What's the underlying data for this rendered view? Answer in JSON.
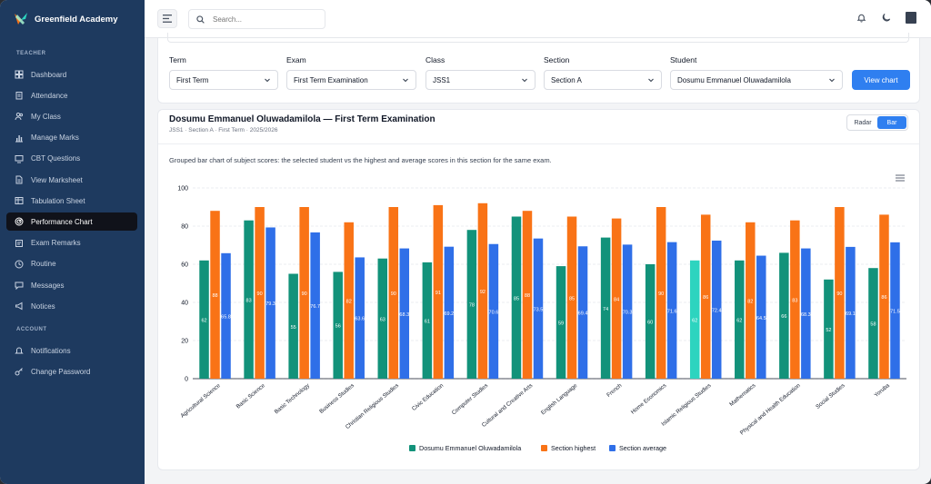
{
  "app": {
    "name": "Greenfield Academy"
  },
  "sidebar": {
    "sections": [
      {
        "title": "TEACHER",
        "items": [
          {
            "label": "Dashboard",
            "icon": "dashboard-icon"
          },
          {
            "label": "Attendance",
            "icon": "clipboard-icon"
          },
          {
            "label": "My Class",
            "icon": "users-icon"
          },
          {
            "label": "Manage Marks",
            "icon": "bar-chart-icon"
          },
          {
            "label": "CBT Questions",
            "icon": "monitor-icon"
          },
          {
            "label": "View Marksheet",
            "icon": "document-icon"
          },
          {
            "label": "Tabulation Sheet",
            "icon": "table-icon"
          },
          {
            "label": "Performance Chart",
            "icon": "radar-icon",
            "active": true
          },
          {
            "label": "Exam Remarks",
            "icon": "notes-icon"
          },
          {
            "label": "Routine",
            "icon": "clock-icon"
          },
          {
            "label": "Messages",
            "icon": "message-icon"
          },
          {
            "label": "Notices",
            "icon": "megaphone-icon"
          }
        ]
      },
      {
        "title": "ACCOUNT",
        "items": [
          {
            "label": "Notifications",
            "icon": "bell-icon"
          },
          {
            "label": "Change Password",
            "icon": "key-icon"
          }
        ]
      }
    ]
  },
  "header": {
    "search_placeholder": "Search..."
  },
  "filters": {
    "term": {
      "label": "Term",
      "value": "First Term"
    },
    "exam": {
      "label": "Exam",
      "value": "First Term Examination"
    },
    "class": {
      "label": "Class",
      "value": "JSS1"
    },
    "section": {
      "label": "Section",
      "value": "Section A"
    },
    "student": {
      "label": "Student",
      "value": "Dosumu Emmanuel Oluwadamilola"
    },
    "view_button": "View chart"
  },
  "chart_card": {
    "title": "Dosumu Emmanuel Oluwadamilola — First Term Examination",
    "subtitle": "JSS1 · Section A · First Term · 2025/2026",
    "toggle": {
      "radar": "Radar",
      "bar": "Bar",
      "selected": "Bar"
    },
    "description": "Grouped bar chart of subject scores: the selected student vs the highest and average scores in this section for the same exam."
  },
  "chart_data": {
    "type": "bar",
    "categories": [
      "Agricultural Science",
      "Basic Science",
      "Basic Technology",
      "Business Studies",
      "Christian Religious Studies",
      "Civic Education",
      "Computer Studies",
      "Cultural and Creative Arts",
      "English Language",
      "French",
      "Home Economics",
      "Islamic Religious Studies",
      "Mathematics",
      "Physical and Health Education",
      "Social Studies",
      "Yoruba"
    ],
    "series": [
      {
        "name": "Dosumu Emmanuel Oluwadamilola",
        "color": "#12927a",
        "values": [
          62,
          83,
          55,
          56,
          63,
          61,
          78,
          85,
          59,
          74,
          60,
          62,
          62,
          66,
          52,
          58
        ]
      },
      {
        "name": "Section highest",
        "color": "#f97316",
        "values": [
          88,
          90,
          90,
          82,
          90,
          91,
          92,
          88,
          85,
          84,
          90,
          86,
          82,
          83,
          90,
          86
        ]
      },
      {
        "name": "Section average",
        "color": "#2f6fe8",
        "values": [
          65.8,
          79.3,
          76.7,
          63.6,
          68.3,
          69.2,
          70.6,
          73.5,
          69.4,
          70.3,
          71.6,
          72.4,
          64.5,
          68.3,
          69.1,
          71.5
        ]
      }
    ],
    "highlight_color": "#2dd4bf",
    "highlight_index": 11,
    "ylim": [
      0,
      100
    ],
    "yticks": [
      0,
      20,
      40,
      60,
      80,
      100
    ],
    "grid": true,
    "legend_position": "bottom"
  }
}
